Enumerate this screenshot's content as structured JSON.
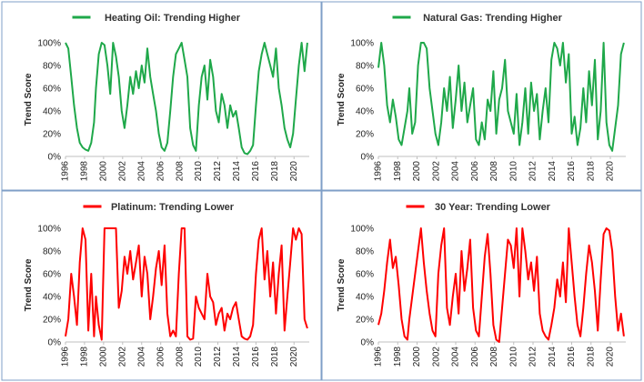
{
  "chart_data": [
    {
      "type": "line",
      "title": "Heating Oil: Trending Higher",
      "ylabel": "Trend Score",
      "xlabel": "",
      "color": "#1fa84a",
      "xlim": [
        1996,
        2021.6
      ],
      "ylim": [
        0,
        100
      ],
      "yticks": [
        "0%",
        "20%",
        "40%",
        "60%",
        "80%",
        "100%"
      ],
      "xticks": [
        "1996",
        "1998",
        "2000",
        "2002",
        "2004",
        "2006",
        "2008",
        "2010",
        "2012",
        "2014",
        "2016",
        "2018",
        "2020"
      ],
      "legend": "top-center",
      "grid": false,
      "series": [
        {
          "name": "Heating Oil: Trending Higher",
          "x": [
            1996.0,
            1996.3,
            1996.6,
            1996.9,
            1997.2,
            1997.5,
            1997.8,
            1998.1,
            1998.4,
            1998.7,
            1999.0,
            1999.2,
            1999.5,
            1999.8,
            2000.1,
            2000.4,
            2000.7,
            2001.0,
            2001.3,
            2001.6,
            2001.9,
            2002.2,
            2002.5,
            2002.8,
            2003.1,
            2003.4,
            2003.7,
            2004.0,
            2004.3,
            2004.6,
            2004.9,
            2005.2,
            2005.5,
            2005.8,
            2006.1,
            2006.4,
            2006.7,
            2007.0,
            2007.3,
            2007.6,
            2007.9,
            2008.2,
            2008.5,
            2008.8,
            2009.1,
            2009.4,
            2009.7,
            2010.0,
            2010.3,
            2010.6,
            2010.9,
            2011.2,
            2011.5,
            2011.8,
            2012.1,
            2012.4,
            2012.7,
            2013.0,
            2013.3,
            2013.6,
            2013.9,
            2014.2,
            2014.5,
            2014.8,
            2015.1,
            2015.4,
            2015.7,
            2016.0,
            2016.3,
            2016.6,
            2016.9,
            2017.2,
            2017.5,
            2017.8,
            2018.1,
            2018.4,
            2018.7,
            2019.0,
            2019.3,
            2019.6,
            2019.9,
            2020.2,
            2020.5,
            2020.8,
            2021.1,
            2021.4
          ],
          "values": [
            100,
            95,
            70,
            45,
            25,
            12,
            8,
            6,
            5,
            12,
            30,
            60,
            90,
            100,
            98,
            80,
            55,
            100,
            88,
            70,
            40,
            25,
            45,
            70,
            55,
            75,
            60,
            80,
            65,
            95,
            70,
            55,
            40,
            20,
            8,
            5,
            12,
            40,
            70,
            90,
            95,
            100,
            85,
            70,
            25,
            10,
            5,
            45,
            70,
            80,
            50,
            85,
            70,
            40,
            30,
            55,
            45,
            25,
            45,
            35,
            40,
            25,
            8,
            3,
            2,
            5,
            10,
            45,
            75,
            90,
            100,
            90,
            80,
            70,
            95,
            60,
            45,
            25,
            15,
            8,
            20,
            50,
            80,
            100,
            75,
            100
          ]
        }
      ]
    },
    {
      "type": "line",
      "title": "Natural Gas: Trending Higher",
      "ylabel": "Trend Score",
      "xlabel": "",
      "color": "#1fa84a",
      "xlim": [
        1996,
        2021.6
      ],
      "ylim": [
        0,
        100
      ],
      "yticks": [
        "0%",
        "20%",
        "40%",
        "60%",
        "80%",
        "100%"
      ],
      "xticks": [
        "1996",
        "1998",
        "2000",
        "2002",
        "2004",
        "2006",
        "2008",
        "2010",
        "2012",
        "2014",
        "2016",
        "2018",
        "2020"
      ],
      "legend": "top-center",
      "grid": false,
      "series": [
        {
          "name": "Natural Gas: Trending Higher",
          "x": [
            1996.0,
            1996.3,
            1996.6,
            1996.9,
            1997.2,
            1997.5,
            1997.8,
            1998.1,
            1998.4,
            1998.7,
            1999.0,
            1999.2,
            1999.5,
            1999.8,
            2000.1,
            2000.4,
            2000.7,
            2001.0,
            2001.3,
            2001.6,
            2001.9,
            2002.2,
            2002.5,
            2002.8,
            2003.1,
            2003.4,
            2003.7,
            2004.0,
            2004.3,
            2004.6,
            2004.9,
            2005.2,
            2005.5,
            2005.8,
            2006.1,
            2006.4,
            2006.7,
            2007.0,
            2007.3,
            2007.6,
            2007.9,
            2008.2,
            2008.5,
            2008.8,
            2009.1,
            2009.4,
            2009.7,
            2010.0,
            2010.3,
            2010.6,
            2010.9,
            2011.2,
            2011.5,
            2011.8,
            2012.1,
            2012.4,
            2012.7,
            2013.0,
            2013.3,
            2013.6,
            2013.9,
            2014.2,
            2014.5,
            2014.8,
            2015.1,
            2015.4,
            2015.7,
            2016.0,
            2016.3,
            2016.6,
            2016.9,
            2017.2,
            2017.5,
            2017.8,
            2018.1,
            2018.4,
            2018.7,
            2019.0,
            2019.3,
            2019.6,
            2019.9,
            2020.2,
            2020.5,
            2020.8,
            2021.1,
            2021.4
          ],
          "values": [
            78,
            100,
            80,
            45,
            30,
            50,
            35,
            15,
            10,
            25,
            40,
            60,
            20,
            30,
            80,
            100,
            100,
            95,
            60,
            40,
            20,
            10,
            30,
            60,
            40,
            70,
            25,
            50,
            80,
            40,
            65,
            30,
            45,
            60,
            15,
            10,
            30,
            15,
            50,
            40,
            75,
            20,
            50,
            60,
            85,
            40,
            30,
            20,
            55,
            10,
            30,
            60,
            20,
            65,
            40,
            55,
            15,
            40,
            60,
            30,
            85,
            100,
            95,
            80,
            100,
            65,
            90,
            20,
            35,
            10,
            25,
            60,
            30,
            75,
            45,
            85,
            15,
            40,
            100,
            30,
            10,
            5,
            25,
            45,
            90,
            100
          ]
        }
      ]
    },
    {
      "type": "line",
      "title": "Platinum: Trending Lower",
      "ylabel": "Trend Score",
      "xlabel": "",
      "color": "#ff0000",
      "xlim": [
        1996,
        2021.6
      ],
      "ylim": [
        0,
        100
      ],
      "yticks": [
        "0%",
        "20%",
        "40%",
        "60%",
        "80%",
        "100%"
      ],
      "xticks": [
        "1996",
        "1998",
        "2000",
        "2002",
        "2004",
        "2006",
        "2008",
        "2010",
        "2012",
        "2014",
        "2016",
        "2018",
        "2020"
      ],
      "legend": "top-center",
      "grid": false,
      "series": [
        {
          "name": "Platinum: Trending Lower",
          "x": [
            1996.0,
            1996.3,
            1996.6,
            1996.9,
            1997.2,
            1997.5,
            1997.8,
            1998.1,
            1998.4,
            1998.7,
            1999.0,
            1999.2,
            1999.5,
            1999.8,
            2000.1,
            2000.4,
            2000.7,
            2001.0,
            2001.3,
            2001.6,
            2001.9,
            2002.2,
            2002.5,
            2002.8,
            2003.1,
            2003.4,
            2003.7,
            2004.0,
            2004.3,
            2004.6,
            2004.9,
            2005.2,
            2005.5,
            2005.8,
            2006.1,
            2006.4,
            2006.7,
            2007.0,
            2007.3,
            2007.6,
            2007.9,
            2008.2,
            2008.5,
            2008.8,
            2009.1,
            2009.4,
            2009.7,
            2010.0,
            2010.3,
            2010.6,
            2010.9,
            2011.2,
            2011.5,
            2011.8,
            2012.1,
            2012.4,
            2012.7,
            2013.0,
            2013.3,
            2013.6,
            2013.9,
            2014.2,
            2014.5,
            2014.8,
            2015.1,
            2015.4,
            2015.7,
            2016.0,
            2016.3,
            2016.6,
            2016.9,
            2017.2,
            2017.5,
            2017.8,
            2018.1,
            2018.4,
            2018.7,
            2019.0,
            2019.3,
            2019.6,
            2019.9,
            2020.2,
            2020.5,
            2020.8,
            2021.1,
            2021.4
          ],
          "values": [
            5,
            20,
            60,
            40,
            15,
            70,
            100,
            90,
            10,
            60,
            5,
            40,
            15,
            2,
            100,
            100,
            100,
            100,
            100,
            30,
            45,
            75,
            60,
            80,
            55,
            70,
            85,
            40,
            75,
            60,
            20,
            40,
            65,
            80,
            50,
            85,
            25,
            5,
            10,
            5,
            60,
            100,
            100,
            5,
            2,
            3,
            40,
            30,
            25,
            20,
            60,
            40,
            35,
            15,
            25,
            30,
            10,
            25,
            20,
            30,
            35,
            20,
            5,
            3,
            2,
            5,
            15,
            60,
            90,
            100,
            55,
            80,
            40,
            70,
            25,
            60,
            85,
            10,
            40,
            70,
            100,
            90,
            100,
            95,
            20,
            12
          ]
        }
      ]
    },
    {
      "type": "line",
      "title": "30 Year: Trending Lower",
      "ylabel": "Trend Score",
      "xlabel": "",
      "color": "#ff0000",
      "xlim": [
        1996,
        2021.6
      ],
      "ylim": [
        0,
        100
      ],
      "yticks": [
        "0%",
        "20%",
        "40%",
        "60%",
        "80%",
        "100%"
      ],
      "xticks": [
        "1996",
        "1998",
        "2000",
        "2002",
        "2004",
        "2006",
        "2008",
        "2010",
        "2012",
        "2014",
        "2016",
        "2018",
        "2020"
      ],
      "legend": "top-center",
      "grid": false,
      "series": [
        {
          "name": "30 Year: Trending Lower",
          "x": [
            1996.0,
            1996.3,
            1996.6,
            1996.9,
            1997.2,
            1997.5,
            1997.8,
            1998.1,
            1998.4,
            1998.7,
            1999.0,
            1999.2,
            1999.5,
            1999.8,
            2000.1,
            2000.4,
            2000.7,
            2001.0,
            2001.3,
            2001.6,
            2001.9,
            2002.2,
            2002.5,
            2002.8,
            2003.1,
            2003.4,
            2003.7,
            2004.0,
            2004.3,
            2004.6,
            2004.9,
            2005.2,
            2005.5,
            2005.8,
            2006.1,
            2006.4,
            2006.7,
            2007.0,
            2007.3,
            2007.6,
            2007.9,
            2008.2,
            2008.5,
            2008.8,
            2009.1,
            2009.4,
            2009.7,
            2010.0,
            2010.3,
            2010.6,
            2010.9,
            2011.2,
            2011.5,
            2011.8,
            2012.1,
            2012.4,
            2012.7,
            2013.0,
            2013.3,
            2013.6,
            2013.9,
            2014.2,
            2014.5,
            2014.8,
            2015.1,
            2015.4,
            2015.7,
            2016.0,
            2016.3,
            2016.6,
            2016.9,
            2017.2,
            2017.5,
            2017.8,
            2018.1,
            2018.4,
            2018.7,
            2019.0,
            2019.3,
            2019.6,
            2019.9,
            2020.2,
            2020.5,
            2020.8,
            2021.1,
            2021.4
          ],
          "values": [
            15,
            25,
            45,
            70,
            90,
            65,
            75,
            50,
            20,
            5,
            2,
            20,
            40,
            60,
            80,
            100,
            70,
            45,
            25,
            10,
            5,
            60,
            85,
            100,
            30,
            15,
            40,
            60,
            25,
            80,
            45,
            65,
            90,
            30,
            10,
            5,
            40,
            75,
            95,
            60,
            15,
            2,
            0,
            30,
            60,
            90,
            85,
            65,
            100,
            40,
            100,
            80,
            55,
            70,
            45,
            75,
            25,
            10,
            5,
            2,
            15,
            30,
            55,
            40,
            70,
            35,
            100,
            70,
            40,
            15,
            5,
            30,
            60,
            85,
            70,
            45,
            10,
            55,
            95,
            100,
            98,
            80,
            40,
            10,
            25,
            5
          ]
        }
      ]
    }
  ]
}
